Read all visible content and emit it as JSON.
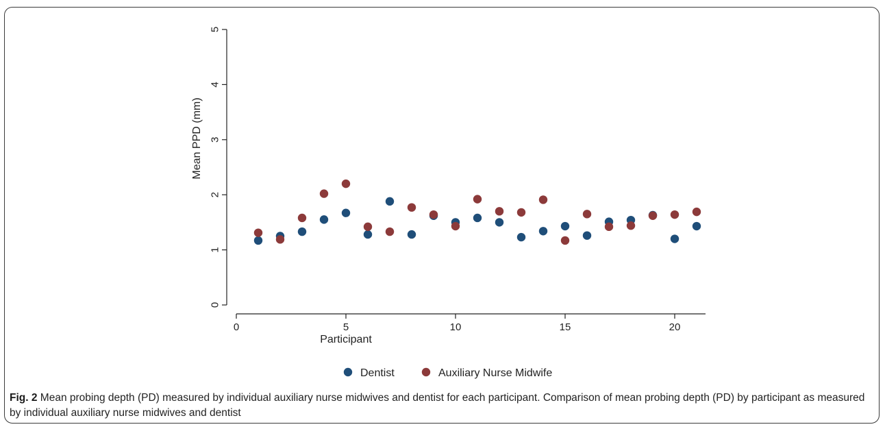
{
  "chart_data": {
    "type": "scatter",
    "xlabel": "Participant",
    "ylabel": "Mean PPD (mm)",
    "xlim": [
      0,
      21
    ],
    "ylim": [
      0,
      5
    ],
    "xticks": [
      0,
      5,
      10,
      15,
      20
    ],
    "yticks": [
      0,
      1,
      2,
      3,
      4,
      5
    ],
    "grid": false,
    "legend_position": "bottom",
    "series": [
      {
        "name": "Dentist",
        "color": "#1f4e79",
        "x": [
          1,
          2,
          3,
          4,
          5,
          6,
          7,
          8,
          9,
          10,
          11,
          12,
          13,
          14,
          15,
          16,
          17,
          18,
          19,
          20,
          21
        ],
        "y": [
          1.17,
          1.25,
          1.33,
          1.55,
          1.67,
          1.28,
          1.88,
          1.28,
          1.62,
          1.5,
          1.58,
          1.5,
          1.23,
          1.34,
          1.43,
          1.26,
          1.51,
          1.54,
          1.63,
          1.2,
          1.43
        ]
      },
      {
        "name": "Auxiliary Nurse Midwife",
        "color": "#8c3a3a",
        "x": [
          1,
          2,
          3,
          4,
          5,
          6,
          7,
          8,
          9,
          10,
          11,
          12,
          13,
          14,
          15,
          16,
          17,
          18,
          19,
          20,
          21
        ],
        "y": [
          1.31,
          1.19,
          1.58,
          2.02,
          2.2,
          1.42,
          1.33,
          1.77,
          1.64,
          1.43,
          1.92,
          1.7,
          1.68,
          1.91,
          1.17,
          1.65,
          1.42,
          1.44,
          1.62,
          1.64,
          1.69
        ]
      }
    ]
  },
  "caption": {
    "label": "Fig. 2",
    "text": " Mean probing depth (PD) measured by individual auxiliary nurse midwives and dentist for each participant. Comparison of mean probing depth (PD) by participant as measured by individual auxiliary nurse midwives and dentist"
  }
}
